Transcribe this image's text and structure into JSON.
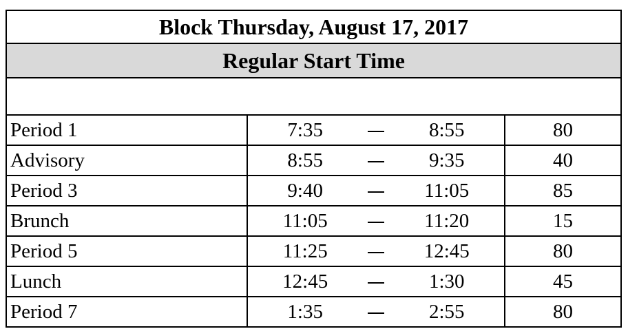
{
  "title": "Block Thursday, August 17, 2017",
  "subtitle": "Regular Start Time",
  "periods": [
    {
      "name": "Period 1",
      "start": "7:35",
      "end": "8:55",
      "minutes": "80"
    },
    {
      "name": "Advisory",
      "start": "8:55",
      "end": "9:35",
      "minutes": "40"
    },
    {
      "name": "Period 3",
      "start": "9:40",
      "end": "11:05",
      "minutes": "85"
    },
    {
      "name": "Brunch",
      "start": "11:05",
      "end": "11:20",
      "minutes": "15"
    },
    {
      "name": "Period 5",
      "start": "11:25",
      "end": "12:45",
      "minutes": "80"
    },
    {
      "name": "Lunch",
      "start": "12:45",
      "end": "1:30",
      "minutes": "45"
    },
    {
      "name": "Period 7",
      "start": "1:35",
      "end": "2:55",
      "minutes": "80"
    }
  ]
}
